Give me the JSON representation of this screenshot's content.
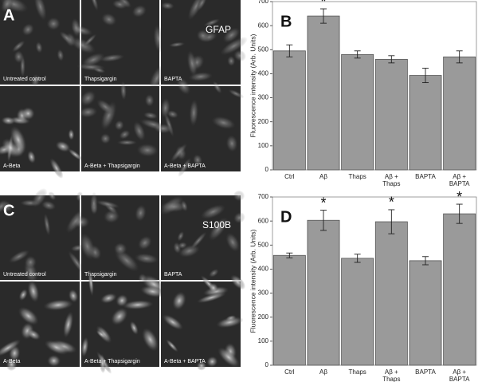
{
  "image_panels": [
    {
      "panel_label": "A",
      "marker": "GFAP",
      "captions": [
        "Untreated control",
        "Thapsigargin",
        "BAPTA",
        "A-Beta",
        "A-Beta + Thapsigargin",
        "A-Beta + BAPTA"
      ]
    },
    {
      "panel_label": "C",
      "marker": "S100B",
      "captions": [
        "Untreated control",
        "Thapsigargin",
        "BAPTA",
        "A-Beta",
        "A-Beta + Thapsigargin",
        "A-Beta + BAPTA"
      ]
    }
  ],
  "chart_data": [
    {
      "type": "bar",
      "panel_label": "B",
      "y_label": "Fluorescence intensity (Arb. Units)",
      "categories": [
        "Ctrl",
        "Aβ",
        "Thaps",
        "Aβ +\nThaps",
        "BAPTA",
        "Aβ +\nBAPTA"
      ],
      "values": [
        495,
        640,
        480,
        460,
        393,
        470
      ],
      "errors": [
        25,
        30,
        15,
        15,
        30,
        25
      ],
      "color": "#9a9a9a",
      "ylim": [
        0,
        700
      ],
      "yticks": [
        0,
        100,
        200,
        300,
        400,
        500,
        600,
        700
      ],
      "annotations": [
        {
          "text": "*",
          "x": "Aβ"
        }
      ]
    },
    {
      "type": "bar",
      "panel_label": "D",
      "y_label": "Fluorescence intensity (Arb. Units)",
      "categories": [
        "Ctrl",
        "Aβ",
        "Thaps",
        "Aβ +\nThaps",
        "BAPTA",
        "Aβ +\nBAPTA"
      ],
      "values": [
        457,
        603,
        445,
        597,
        435,
        630
      ],
      "errors": [
        10,
        42,
        17,
        50,
        17,
        40
      ],
      "color": "#9a9a9a",
      "ylim": [
        0,
        700
      ],
      "yticks": [
        0,
        100,
        200,
        300,
        400,
        500,
        600,
        700
      ],
      "annotations": [
        {
          "text": "*",
          "x": "Aβ"
        },
        {
          "text": "*",
          "x": "Aβ +\nThaps"
        },
        {
          "text": "*",
          "x": "Aβ +\nBAPTA"
        }
      ]
    }
  ]
}
